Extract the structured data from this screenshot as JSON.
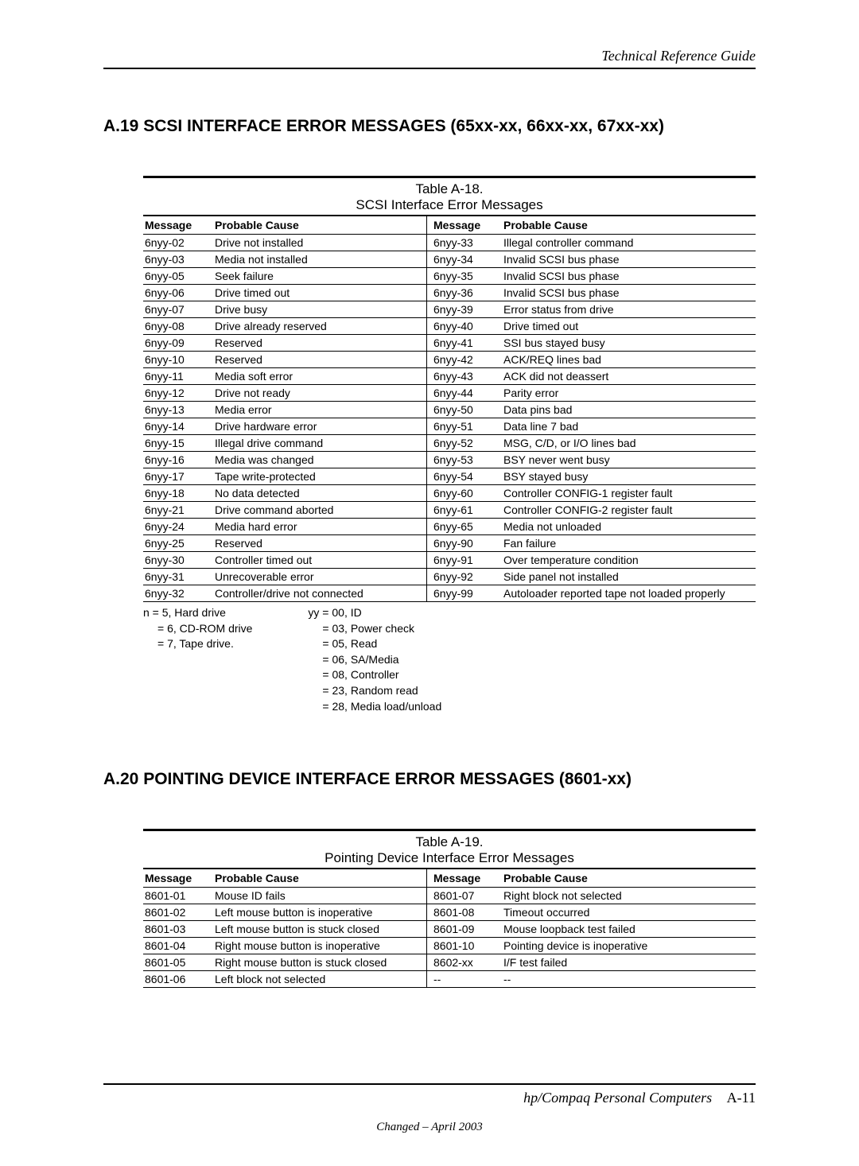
{
  "header": {
    "title": "Technical Reference Guide"
  },
  "section_a19": {
    "heading": "A.19   SCSI INTERFACE ERROR MESSAGES (65xx-xx, 66xx-xx, 67xx-xx)",
    "table_number": "Table A-18.",
    "table_caption": "SCSI Interface Error Messages",
    "col_headers": [
      "Message",
      "Probable Cause",
      "Message",
      "Probable Cause"
    ],
    "rows": [
      [
        "6nyy-02",
        "Drive not installed",
        "6nyy-33",
        "Illegal controller command"
      ],
      [
        "6nyy-03",
        "Media not installed",
        "6nyy-34",
        "Invalid SCSI bus phase"
      ],
      [
        "6nyy-05",
        "Seek failure",
        "6nyy-35",
        "Invalid SCSI bus phase"
      ],
      [
        "6nyy-06",
        "Drive timed out",
        "6nyy-36",
        "Invalid SCSI bus phase"
      ],
      [
        "6nyy-07",
        "Drive busy",
        "6nyy-39",
        "Error status from drive"
      ],
      [
        "6nyy-08",
        "Drive already reserved",
        "6nyy-40",
        "Drive timed out"
      ],
      [
        "6nyy-09",
        "Reserved",
        "6nyy-41",
        "SSI bus stayed busy"
      ],
      [
        "6nyy-10",
        "Reserved",
        "6nyy-42",
        "ACK/REQ lines bad"
      ],
      [
        "6nyy-11",
        "Media soft error",
        "6nyy-43",
        "ACK did not deassert"
      ],
      [
        "6nyy-12",
        "Drive not ready",
        "6nyy-44",
        "Parity error"
      ],
      [
        "6nyy-13",
        "Media error",
        "6nyy-50",
        "Data pins bad"
      ],
      [
        "6nyy-14",
        "Drive hardware error",
        "6nyy-51",
        "Data line 7 bad"
      ],
      [
        "6nyy-15",
        "Illegal drive command",
        "6nyy-52",
        "MSG, C/D, or I/O lines bad"
      ],
      [
        "6nyy-16",
        "Media was changed",
        "6nyy-53",
        "BSY never went busy"
      ],
      [
        "6nyy-17",
        "Tape write-protected",
        "6nyy-54",
        "BSY stayed busy"
      ],
      [
        "6nyy-18",
        "No data detected",
        "6nyy-60",
        "Controller CONFIG-1 register fault"
      ],
      [
        "6nyy-21",
        "Drive command aborted",
        "6nyy-61",
        "Controller CONFIG-2 register fault"
      ],
      [
        "6nyy-24",
        "Media hard error",
        "6nyy-65",
        "Media not unloaded"
      ],
      [
        "6nyy-25",
        "Reserved",
        "6nyy-90",
        "Fan failure"
      ],
      [
        "6nyy-30",
        "Controller timed out",
        "6nyy-91",
        "Over temperature condition"
      ],
      [
        "6nyy-31",
        "Unrecoverable error",
        "6nyy-92",
        "Side panel not installed"
      ],
      [
        "6nyy-32",
        "Controller/drive not connected",
        "6nyy-99",
        "Autoloader reported tape not loaded properly"
      ]
    ],
    "footnote_col1": [
      "n = 5, Hard drive",
      "= 6, CD-ROM drive",
      "= 7, Tape drive."
    ],
    "footnote_col2": [
      "yy = 00, ID",
      "= 03, Power check",
      "= 05, Read",
      "= 06, SA/Media",
      "= 08, Controller",
      "= 23, Random read",
      "= 28, Media load/unload"
    ]
  },
  "section_a20": {
    "heading": "A.20   POINTING DEVICE INTERFACE ERROR MESSAGES (8601-xx)",
    "table_number": "Table A-19.",
    "table_caption": "Pointing Device Interface Error Messages",
    "col_headers": [
      "Message",
      "Probable Cause",
      "Message",
      "Probable Cause"
    ],
    "rows": [
      [
        "8601-01",
        "Mouse ID fails",
        "8601-07",
        "Right block not selected"
      ],
      [
        "8601-02",
        "Left mouse button is inoperative",
        "8601-08",
        "Timeout occurred"
      ],
      [
        "8601-03",
        "Left mouse button is stuck closed",
        "8601-09",
        "Mouse loopback test failed"
      ],
      [
        "8601-04",
        "Right mouse button is inoperative",
        "8601-10",
        "Pointing device is inoperative"
      ],
      [
        "8601-05",
        "Right mouse button is stuck closed",
        "8602-xx",
        "I/F test failed"
      ],
      [
        "8601-06",
        "Left block not selected",
        "--",
        "--"
      ]
    ]
  },
  "footer": {
    "title": "hp/Compaq Personal Computers",
    "page_number": "A-11",
    "changed": "Changed – April 2003"
  }
}
